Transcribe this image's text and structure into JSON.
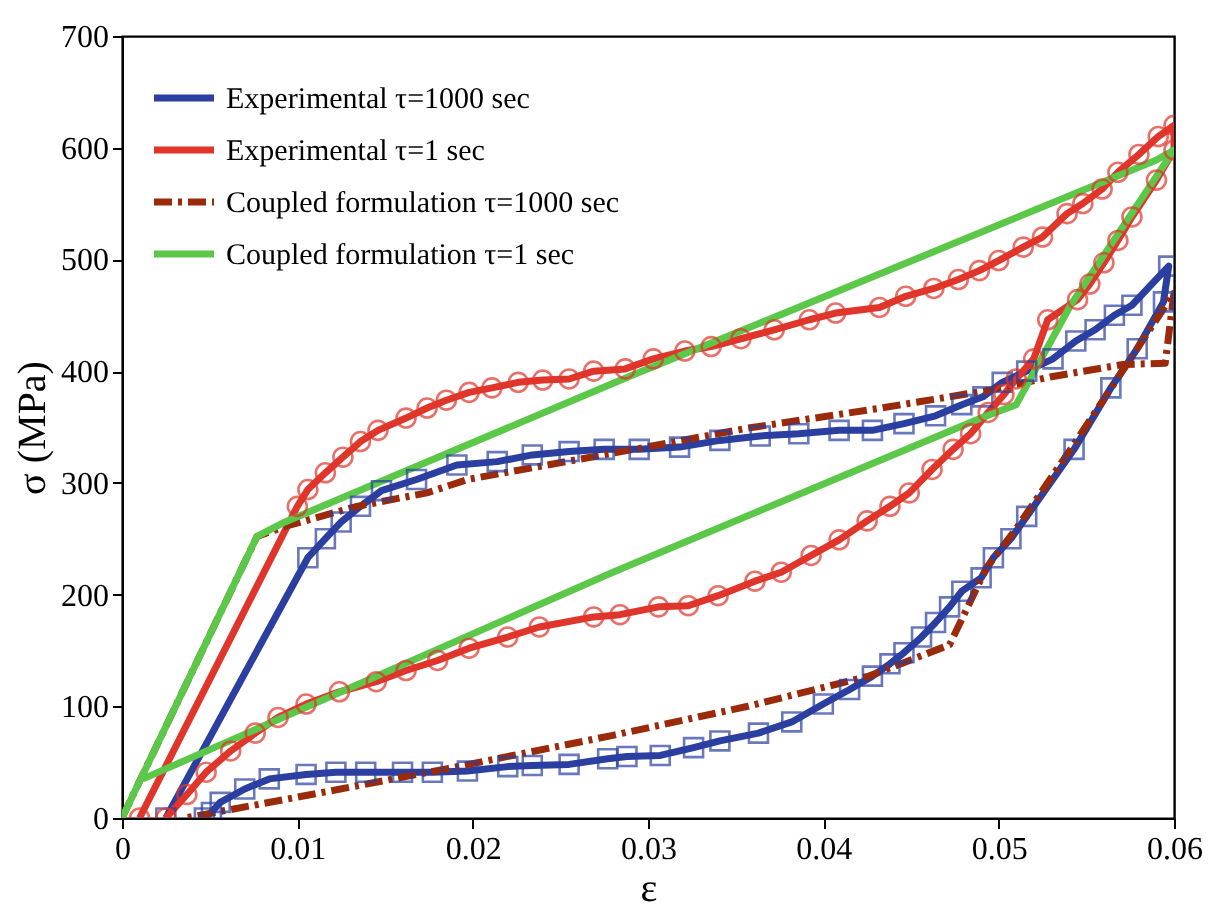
{
  "chart_data": {
    "type": "line",
    "xlabel": "ε",
    "ylabel": "σ (MPa)",
    "xlim": [
      0,
      0.06
    ],
    "ylim": [
      0,
      700
    ],
    "xticks": [
      0,
      0.01,
      0.02,
      0.03,
      0.04,
      0.05,
      0.06
    ],
    "yticks": [
      0,
      100,
      200,
      300,
      400,
      500,
      600,
      700
    ],
    "legend": "top left",
    "grid": false,
    "series": [
      {
        "name": "Experimental τ=1000 sec",
        "color": "#2b3fa0",
        "marker": "square",
        "line_style": "solid",
        "x": [
          0.0025,
          0.0106,
          0.0116,
          0.0125,
          0.0136,
          0.0148,
          0.0168,
          0.0191,
          0.0214,
          0.0234,
          0.0255,
          0.0275,
          0.0295,
          0.0318,
          0.0341,
          0.0364,
          0.0386,
          0.0409,
          0.0428,
          0.0446,
          0.0464,
          0.0479,
          0.0491,
          0.0502,
          0.0516,
          0.0531,
          0.0544,
          0.0555,
          0.0566,
          0.0576,
          0.0597,
          0.0594,
          0.0579,
          0.0564,
          0.0543,
          0.0516,
          0.0507,
          0.0497,
          0.049,
          0.0479,
          0.0472,
          0.0464,
          0.0456,
          0.0446,
          0.0438,
          0.0428,
          0.0415,
          0.04,
          0.0382,
          0.0363,
          0.0341,
          0.0326,
          0.0307,
          0.0288,
          0.0277,
          0.0255,
          0.0234,
          0.022,
          0.0197,
          0.0177,
          0.016,
          0.0139,
          0.0122,
          0.0105,
          0.0084,
          0.007,
          0.0056,
          0.0051,
          0.0047
        ],
        "values": [
          0,
          233,
          250,
          265,
          279,
          293,
          303,
          316,
          319,
          325,
          328,
          330,
          330,
          332,
          338,
          342,
          344,
          347,
          347,
          353,
          360,
          370,
          377,
          390,
          400,
          411,
          427,
          437,
          450,
          459,
          494,
          462,
          420,
          385,
          330,
          270,
          250,
          233,
          215,
          203,
          189,
          175,
          162,
          148,
          138,
          127,
          115,
          102,
          86,
          76,
          69,
          63,
          56,
          55,
          53,
          48,
          47,
          46,
          42,
          41,
          41,
          41,
          41,
          39,
          35,
          26,
          14,
          5,
          0
        ]
      },
      {
        "name": "Experimental τ=1 sec",
        "color": "#e0352a",
        "marker": "circle",
        "line_style": "solid",
        "x": [
          0.001,
          0.01,
          0.0106,
          0.0116,
          0.0126,
          0.0136,
          0.0146,
          0.0162,
          0.0174,
          0.0185,
          0.0198,
          0.0211,
          0.0226,
          0.024,
          0.0255,
          0.0269,
          0.0287,
          0.0303,
          0.0321,
          0.0336,
          0.0353,
          0.0372,
          0.0392,
          0.0407,
          0.0432,
          0.0447,
          0.0463,
          0.0477,
          0.0489,
          0.05,
          0.0514,
          0.0525,
          0.0539,
          0.0548,
          0.0559,
          0.0568,
          0.058,
          0.0591,
          0.06,
          0.06,
          0.059,
          0.0576,
          0.0568,
          0.056,
          0.0552,
          0.0545,
          0.0528,
          0.052,
          0.051,
          0.0503,
          0.0494,
          0.0484,
          0.0474,
          0.0462,
          0.0449,
          0.0438,
          0.0425,
          0.0409,
          0.0393,
          0.0376,
          0.0361,
          0.034,
          0.0323,
          0.0306,
          0.0284,
          0.0269,
          0.0238,
          0.022,
          0.0198,
          0.018,
          0.0162,
          0.0145,
          0.0124,
          0.0105,
          0.0089,
          0.0076,
          0.0062,
          0.0048,
          0.0037,
          0.0025
        ],
        "values": [
          0,
          279,
          294,
          309,
          323,
          337,
          347,
          358,
          367,
          374,
          381,
          385,
          390,
          392,
          393,
          400,
          402,
          411,
          418,
          422,
          429,
          437,
          446,
          452,
          457,
          467,
          474,
          482,
          490,
          499,
          511,
          520,
          541,
          550,
          563,
          578,
          594,
          610,
          620,
          598,
          571,
          538,
          517,
          497,
          478,
          464,
          446,
          411,
          393,
          379,
          363,
          344,
          330,
          312,
          291,
          279,
          266,
          249,
          235,
          220,
          212,
          199,
          190,
          189,
          182,
          180,
          171,
          162,
          152,
          141,
          132,
          122,
          113,
          102,
          90,
          76,
          60,
          41,
          21,
          0
        ]
      },
      {
        "name": "Coupled formulation τ=1000 sec",
        "color": "#9b2a0a",
        "marker": "none",
        "line_style": "dashed",
        "x": [
          0,
          0.0077,
          0.0093,
          0.0134,
          0.0174,
          0.0197,
          0.0292,
          0.0357,
          0.0433,
          0.0495,
          0.053,
          0.0571,
          0.0595,
          0.06,
          0.0541,
          0.051,
          0.0493,
          0.0472,
          0.0426,
          0.0357,
          0.028,
          0.0185,
          0.0108,
          0.0036
        ],
        "values": [
          0,
          252,
          261,
          279,
          291,
          303,
          330,
          349,
          367,
          383,
          395,
          406,
          407,
          470,
          330,
          259,
          224,
          155,
          127,
          100,
          74,
          44,
          21,
          0
        ]
      },
      {
        "name": "Coupled formulation τ=1 sec",
        "color": "#5cc84a",
        "marker": "none",
        "line_style": "solid",
        "x": [
          0,
          0.0077,
          0.0093,
          0.0292,
          0.0364,
          0.059,
          0.06,
          0.0541,
          0.051,
          0.049,
          0.028,
          0.0012
        ],
        "values": [
          0,
          252,
          265,
          397,
          443,
          589,
          598,
          459,
          370,
          358,
          220,
          35
        ]
      }
    ]
  }
}
